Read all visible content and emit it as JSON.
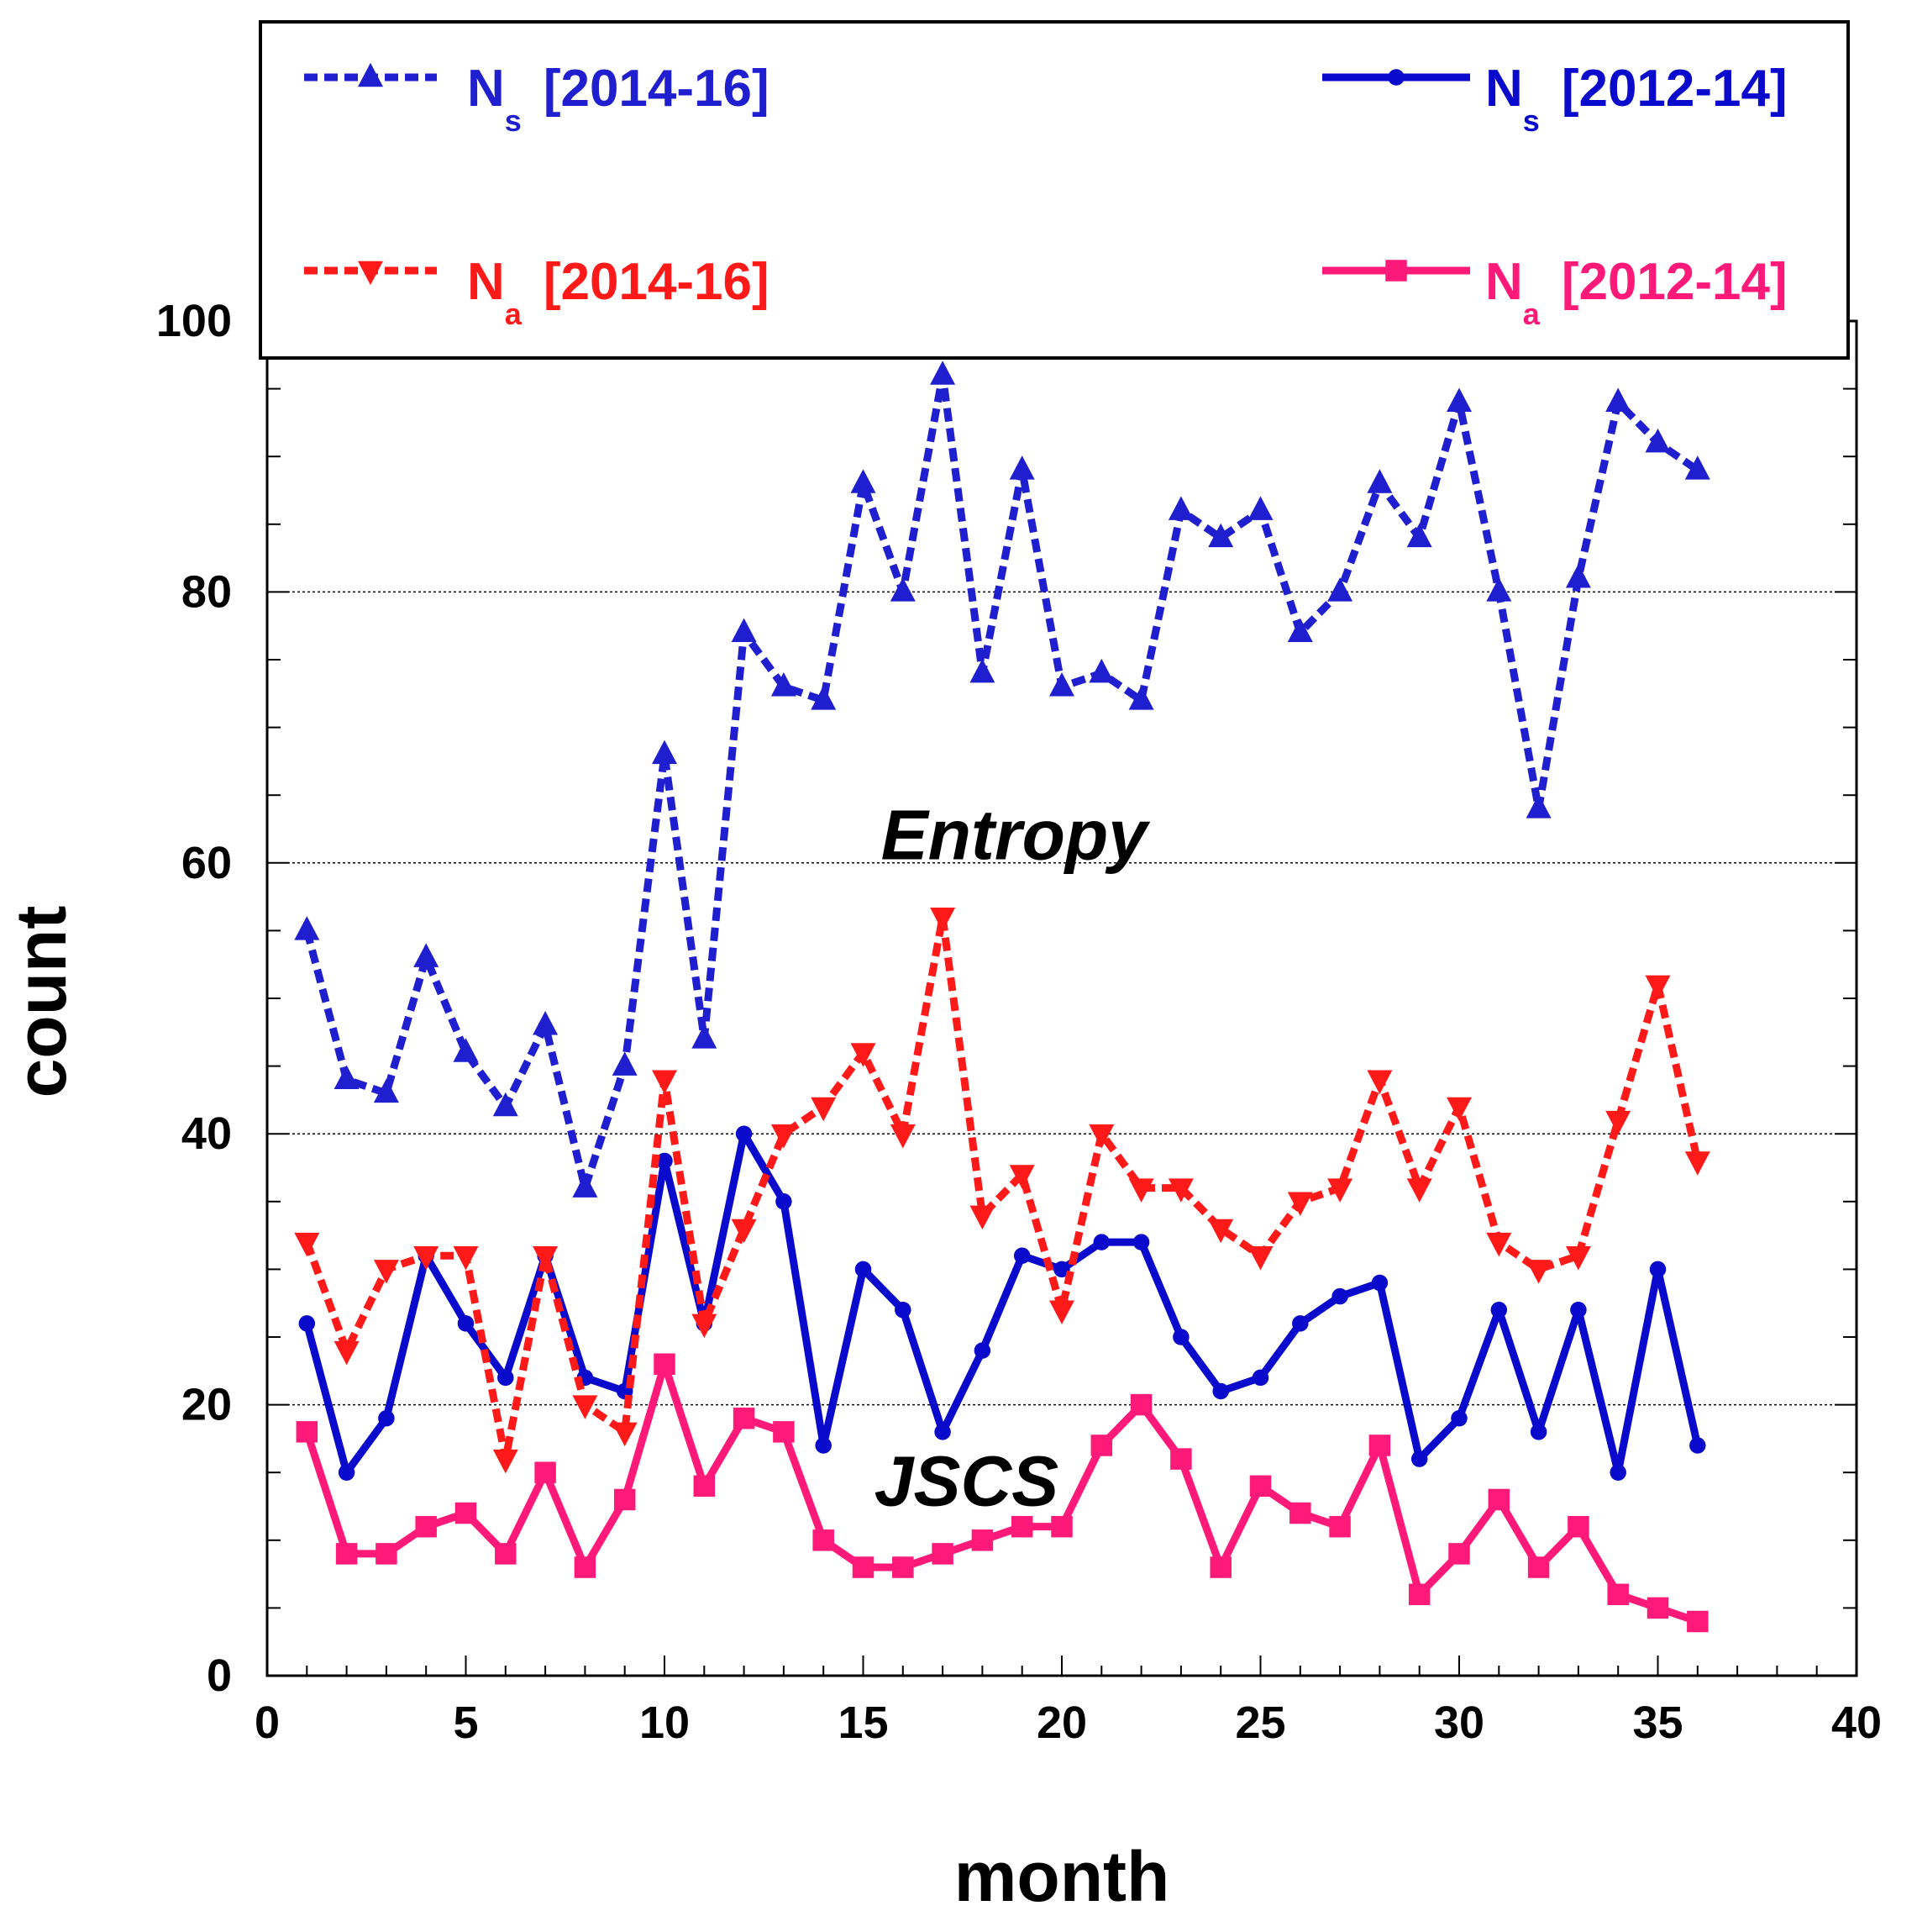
{
  "chart_data": {
    "type": "line",
    "title": "",
    "xlabel": "month",
    "ylabel": "count",
    "xlim": [
      0,
      40
    ],
    "ylim": [
      0,
      100
    ],
    "x_ticks": [
      0,
      5,
      10,
      15,
      20,
      25,
      30,
      35,
      40
    ],
    "x_tick_labels": [
      "0",
      "5",
      "10",
      "15",
      "20",
      "25",
      "30",
      "35",
      "40"
    ],
    "y_ticks": [
      0,
      20,
      40,
      60,
      80,
      100
    ],
    "y_tick_labels": [
      "0",
      "20",
      "40",
      "60",
      "80",
      "100"
    ],
    "grid": "horizontal dotted at 20, 40, 60, 80",
    "legend_placement": "top",
    "annotations": [
      {
        "text": "Entropy",
        "x": 18.8,
        "y": 62
      },
      {
        "text": "JSCS",
        "x": 17.6,
        "y": 14.3
      }
    ],
    "x": [
      1,
      2,
      3,
      4,
      5,
      6,
      7,
      8,
      9,
      10,
      11,
      12,
      13,
      14,
      15,
      16,
      17,
      18,
      19,
      20,
      21,
      22,
      23,
      24,
      25,
      26,
      27,
      28,
      29,
      30,
      31,
      32,
      33,
      34,
      35,
      36
    ],
    "series": [
      {
        "name": "N_s [2014-16]",
        "symbol": "N",
        "subscript": "s",
        "period": "[2014-16]",
        "color": "#1f1fcf",
        "dash": "dashed",
        "marker": "triangle-up",
        "values": [
          55,
          44,
          43,
          53,
          46,
          42,
          48,
          36,
          45,
          68,
          47,
          77,
          73,
          72,
          88,
          80,
          96,
          74,
          89,
          73,
          74,
          72,
          86,
          84,
          86,
          77,
          80,
          88,
          84,
          94,
          80,
          64,
          81,
          94,
          91,
          89
        ]
      },
      {
        "name": "N_s [2012-14]",
        "symbol": "N",
        "subscript": "s",
        "period": "[2012-14]",
        "color": "#0a0acd",
        "dash": "solid",
        "marker": "circle",
        "values": [
          26,
          15,
          19,
          31,
          26,
          22,
          31,
          22,
          21,
          38,
          26,
          40,
          35,
          17,
          30,
          27,
          18,
          24,
          31,
          30,
          32,
          32,
          25,
          21,
          22,
          26,
          28,
          29,
          16,
          19,
          27,
          18,
          27,
          15,
          30,
          17
        ]
      },
      {
        "name": "N_a [2014-16]",
        "symbol": "N",
        "subscript": "a",
        "period": "[2014-16]",
        "color": "#ff1a1a",
        "dash": "dashed",
        "marker": "triangle-down",
        "values": [
          32,
          24,
          30,
          31,
          31,
          16,
          31,
          20,
          18,
          44,
          26,
          33,
          40,
          42,
          46,
          40,
          56,
          34,
          37,
          27,
          40,
          36,
          36,
          33,
          31,
          35,
          36,
          44,
          36,
          42,
          32,
          30,
          31,
          41,
          51,
          38
        ]
      },
      {
        "name": "N_a [2012-14]",
        "symbol": "N",
        "subscript": "a",
        "period": "[2012-14]",
        "color": "#ff1a7a",
        "dash": "solid",
        "marker": "square",
        "values": [
          18,
          9,
          9,
          11,
          12,
          9,
          15,
          8,
          13,
          23,
          14,
          19,
          18,
          10,
          8,
          8,
          9,
          10,
          11,
          11,
          17,
          20,
          16,
          8,
          14,
          12,
          11,
          17,
          6,
          9,
          13,
          8,
          11,
          6,
          5,
          4
        ]
      }
    ]
  }
}
